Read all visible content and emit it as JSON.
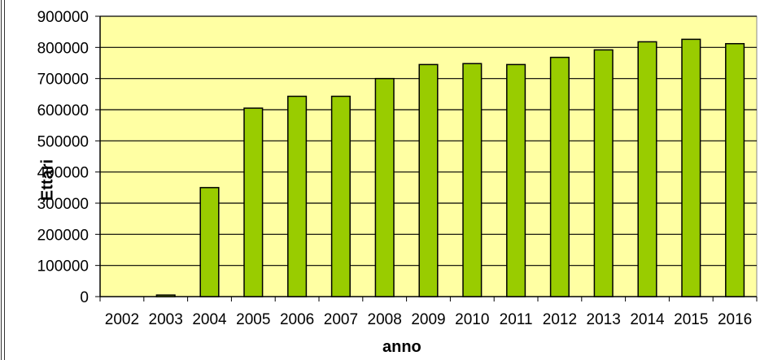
{
  "chart_data": {
    "type": "bar",
    "title": "",
    "xlabel": "anno",
    "ylabel": "Ettari",
    "categories": [
      "2002",
      "2003",
      "2004",
      "2005",
      "2006",
      "2007",
      "2008",
      "2009",
      "2010",
      "2011",
      "2012",
      "2013",
      "2014",
      "2015",
      "2016"
    ],
    "values": [
      0,
      5000,
      350000,
      605000,
      643000,
      643000,
      700000,
      745000,
      748000,
      745000,
      768000,
      792000,
      818000,
      826000,
      812000
    ],
    "ylim": [
      0,
      900000
    ],
    "yticks": [
      "0",
      "100000",
      "200000",
      "300000",
      "400000",
      "500000",
      "600000",
      "700000",
      "800000",
      "900000"
    ],
    "grid": true,
    "legend": "none",
    "colors": {
      "plot_background": "#ffffa3",
      "bar_fill": "#99cc00",
      "bar_stroke": "#000000",
      "grid": "#000000"
    }
  }
}
